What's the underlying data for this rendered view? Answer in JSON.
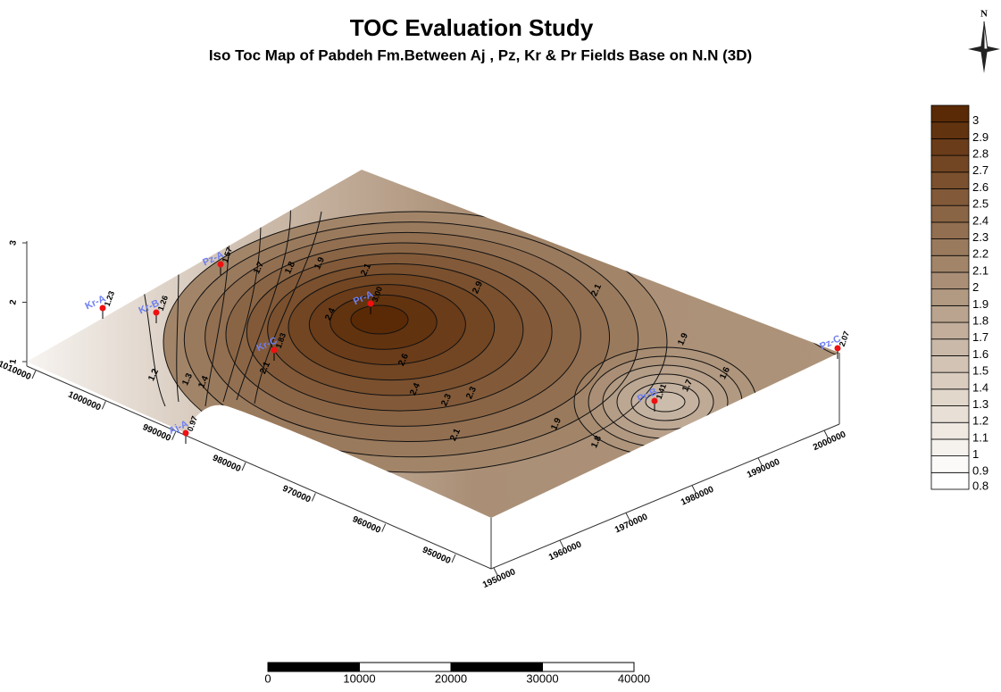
{
  "header": {
    "title": "TOC Evaluation Study",
    "subtitle": "Iso Toc Map of Pabdeh Fm.Between Aj , Pz, Kr & Pr Fields Base on N.N (3D)",
    "north": "N"
  },
  "legend": {
    "levels": [
      0.8,
      0.9,
      1,
      1.1,
      1.2,
      1.3,
      1.4,
      1.5,
      1.6,
      1.7,
      1.8,
      1.9,
      2,
      2.1,
      2.2,
      2.3,
      2.4,
      2.5,
      2.6,
      2.7,
      2.8,
      2.9,
      3
    ],
    "colors": [
      "#ffffff",
      "#fbfaf8",
      "#f5f1ec",
      "#efe9e2",
      "#e8e0d7",
      "#e1d7cb",
      "#dacdc0",
      "#d2c3b4",
      "#cab9a8",
      "#c2ae9b",
      "#baa48f",
      "#b29a82",
      "#aa8f76",
      "#a28569",
      "#9a7a5d",
      "#926f51",
      "#8a6545",
      "#825a39",
      "#7a502e",
      "#724623",
      "#6a3c19",
      "#62330f",
      "#5a2a06"
    ]
  },
  "axes": {
    "z": {
      "ticks": [
        1,
        2,
        3
      ]
    },
    "y": {
      "ticks": [
        1010000,
        1000000,
        990000,
        980000,
        970000,
        960000,
        950000
      ]
    },
    "x": {
      "ticks": [
        1950000,
        1960000,
        1970000,
        1980000,
        1990000,
        2000000
      ]
    }
  },
  "wells": [
    {
      "name": "Kr-A",
      "value": "1.23"
    },
    {
      "name": "Kr-B",
      "value": "1.26"
    },
    {
      "name": "Pz-A",
      "value": "1.57"
    },
    {
      "name": "Aj-A",
      "value": "0.97"
    },
    {
      "name": "Kr-C",
      "value": "1.83"
    },
    {
      "name": "Pr-A",
      "value": "3.00"
    },
    {
      "name": "Pr-B",
      "value": "1.41"
    },
    {
      "name": "Pz-C",
      "value": "2.07"
    }
  ],
  "contour_labels": [
    "1.7",
    "1.8",
    "1.9",
    "2.1",
    "2.9",
    "2.1",
    "1.9",
    "1.6",
    "1.7",
    "2.6",
    "2.4",
    "2.3",
    "2.3",
    "2.1",
    "1.9",
    "1.8",
    "1.2",
    "1.3",
    "1.4",
    "2.4",
    "2.1"
  ],
  "scale_bar": {
    "ticks": [
      0,
      10000,
      20000,
      30000,
      40000
    ]
  }
}
